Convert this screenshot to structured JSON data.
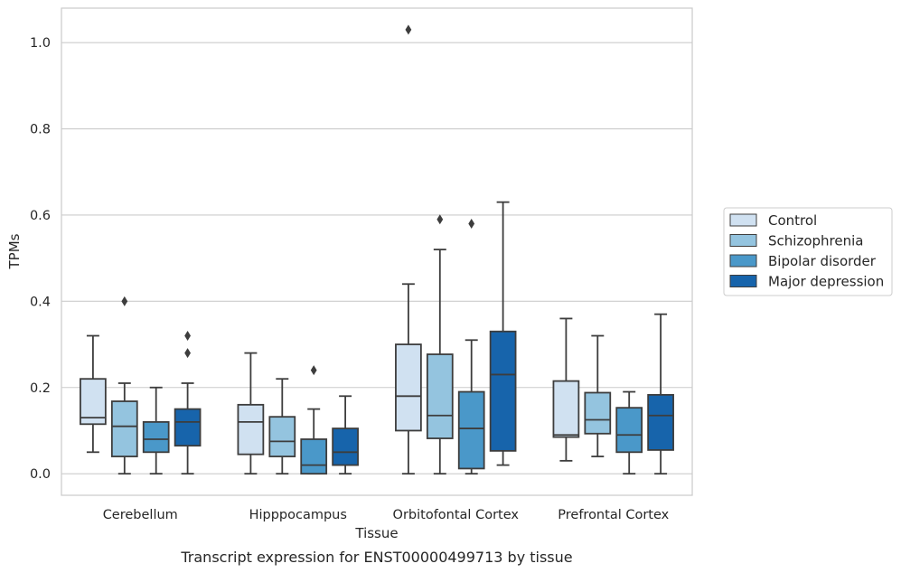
{
  "caption": "Transcript expression for ENST00000499713 by tissue",
  "chart_data": {
    "type": "box",
    "xlabel": "Tissue",
    "ylabel": "TPMs",
    "categories": [
      "Cerebellum",
      "Hipppocampus",
      "Orbitofontal Cortex",
      "Prefrontal Cortex"
    ],
    "ylim": [
      -0.05,
      1.08
    ],
    "yticks": [
      "0.0",
      "0.2",
      "0.4",
      "0.6",
      "0.8",
      "1.0"
    ],
    "grid": true,
    "legend_position": "right",
    "series": [
      {
        "name": "Control",
        "color": "#d0e1f1",
        "boxes": [
          {
            "whislo": 0.05,
            "q1": 0.115,
            "med": 0.13,
            "q3": 0.22,
            "whishi": 0.32,
            "fliers": []
          },
          {
            "whislo": 0.0,
            "q1": 0.045,
            "med": 0.12,
            "q3": 0.16,
            "whishi": 0.28,
            "fliers": []
          },
          {
            "whislo": 0.0,
            "q1": 0.1,
            "med": 0.18,
            "q3": 0.3,
            "whishi": 0.44,
            "fliers": [
              1.03
            ]
          },
          {
            "whislo": 0.03,
            "q1": 0.085,
            "med": 0.09,
            "q3": 0.215,
            "whishi": 0.36,
            "fliers": []
          }
        ]
      },
      {
        "name": "Schizophrenia",
        "color": "#94c4df",
        "boxes": [
          {
            "whislo": 0.0,
            "q1": 0.04,
            "med": 0.11,
            "q3": 0.168,
            "whishi": 0.21,
            "fliers": [
              0.4
            ]
          },
          {
            "whislo": 0.0,
            "q1": 0.04,
            "med": 0.075,
            "q3": 0.132,
            "whishi": 0.22,
            "fliers": []
          },
          {
            "whislo": 0.0,
            "q1": 0.082,
            "med": 0.135,
            "q3": 0.277,
            "whishi": 0.52,
            "fliers": [
              0.59
            ]
          },
          {
            "whislo": 0.04,
            "q1": 0.093,
            "med": 0.125,
            "q3": 0.188,
            "whishi": 0.32,
            "fliers": []
          }
        ]
      },
      {
        "name": "Bipolar disorder",
        "color": "#4a98c9",
        "boxes": [
          {
            "whislo": 0.0,
            "q1": 0.05,
            "med": 0.08,
            "q3": 0.12,
            "whishi": 0.2,
            "fliers": []
          },
          {
            "whislo": 0.0,
            "q1": 0.0,
            "med": 0.02,
            "q3": 0.08,
            "whishi": 0.15,
            "fliers": [
              0.24
            ]
          },
          {
            "whislo": 0.0,
            "q1": 0.012,
            "med": 0.105,
            "q3": 0.19,
            "whishi": 0.31,
            "fliers": [
              0.58
            ]
          },
          {
            "whislo": 0.0,
            "q1": 0.05,
            "med": 0.09,
            "q3": 0.153,
            "whishi": 0.19,
            "fliers": []
          }
        ]
      },
      {
        "name": "Major depression",
        "color": "#1764ab",
        "boxes": [
          {
            "whislo": 0.0,
            "q1": 0.065,
            "med": 0.12,
            "q3": 0.15,
            "whishi": 0.21,
            "fliers": [
              0.28,
              0.32
            ]
          },
          {
            "whislo": 0.0,
            "q1": 0.02,
            "med": 0.05,
            "q3": 0.105,
            "whishi": 0.18,
            "fliers": []
          },
          {
            "whislo": 0.02,
            "q1": 0.053,
            "med": 0.23,
            "q3": 0.33,
            "whishi": 0.63,
            "fliers": []
          },
          {
            "whislo": 0.0,
            "q1": 0.055,
            "med": 0.135,
            "q3": 0.183,
            "whishi": 0.37,
            "fliers": []
          }
        ]
      }
    ]
  }
}
